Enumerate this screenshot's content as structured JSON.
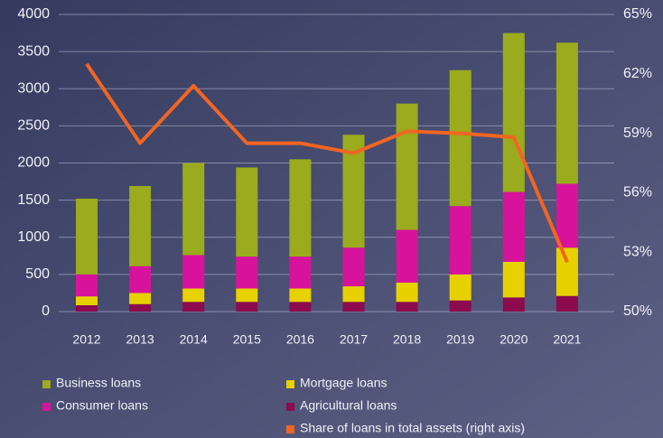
{
  "chart_data": {
    "type": "bar",
    "categories": [
      "2012",
      "2013",
      "2014",
      "2015",
      "2016",
      "2017",
      "2018",
      "2019",
      "2020",
      "2021"
    ],
    "series": [
      {
        "name": "Agricultural loans",
        "color": "#8c0a4e",
        "values": [
          85,
          100,
          130,
          130,
          130,
          130,
          130,
          150,
          190,
          210
        ]
      },
      {
        "name": "Mortgage loans",
        "color": "#e8d100",
        "values": [
          120,
          150,
          180,
          180,
          180,
          210,
          260,
          350,
          480,
          650
        ]
      },
      {
        "name": "Consumer loans",
        "color": "#d8139b",
        "values": [
          295,
          360,
          450,
          430,
          430,
          520,
          710,
          920,
          940,
          860
        ]
      },
      {
        "name": "Business loans",
        "color": "#9aab1d",
        "values": [
          1020,
          1080,
          1240,
          1200,
          1310,
          1520,
          1700,
          1830,
          2140,
          1900
        ]
      },
      {
        "name": "Share of loans in total assets (right axis)",
        "color": "#f26522",
        "type": "line",
        "axis": "y2",
        "values": [
          62.5,
          58.5,
          61.4,
          58.5,
          58.5,
          58.0,
          59.1,
          59.0,
          58.8,
          52.5
        ]
      }
    ],
    "stacked": true,
    "ylim": [
      0,
      4000
    ],
    "yticks": [
      0,
      500,
      1000,
      1500,
      2000,
      2500,
      3000,
      3500,
      4000
    ],
    "y2lim": [
      50,
      65
    ],
    "y2ticks": [
      {
        "value": 50,
        "label": "50%"
      },
      {
        "value": 53,
        "label": "53%"
      },
      {
        "value": 56,
        "label": "56%"
      },
      {
        "value": 59,
        "label": "59%"
      },
      {
        "value": 62,
        "label": "62%"
      },
      {
        "value": 65,
        "label": "65%"
      }
    ],
    "grid": true
  }
}
